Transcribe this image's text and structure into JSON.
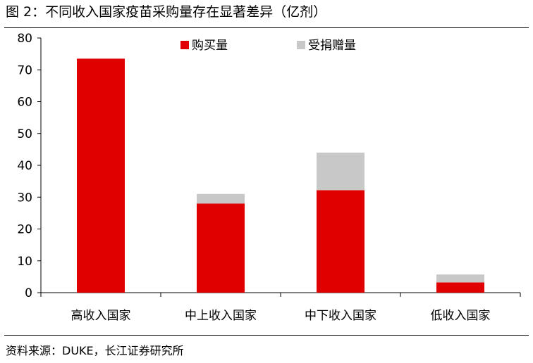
{
  "title": "图 2：不同收入国家疫苗采购量存在显著差异（亿剂）",
  "source": "资料来源：DUKE，长江证券研究所",
  "chart_data": {
    "type": "bar",
    "stacked": true,
    "categories": [
      "高收入国家",
      "中上收入国家",
      "中下收入国家",
      "低收入国家"
    ],
    "series": [
      {
        "name": "购买量",
        "color": "#e00000",
        "values": [
          73.5,
          28,
          32.2,
          3.2
        ]
      },
      {
        "name": "受捐赠量",
        "color": "#c8c8c8",
        "values": [
          0,
          3,
          11.8,
          2.5
        ]
      }
    ],
    "ylim": [
      0,
      80
    ],
    "yticks": [
      0,
      10,
      20,
      30,
      40,
      50,
      60,
      70,
      80
    ],
    "grid": false,
    "legend_position": "top-center"
  }
}
